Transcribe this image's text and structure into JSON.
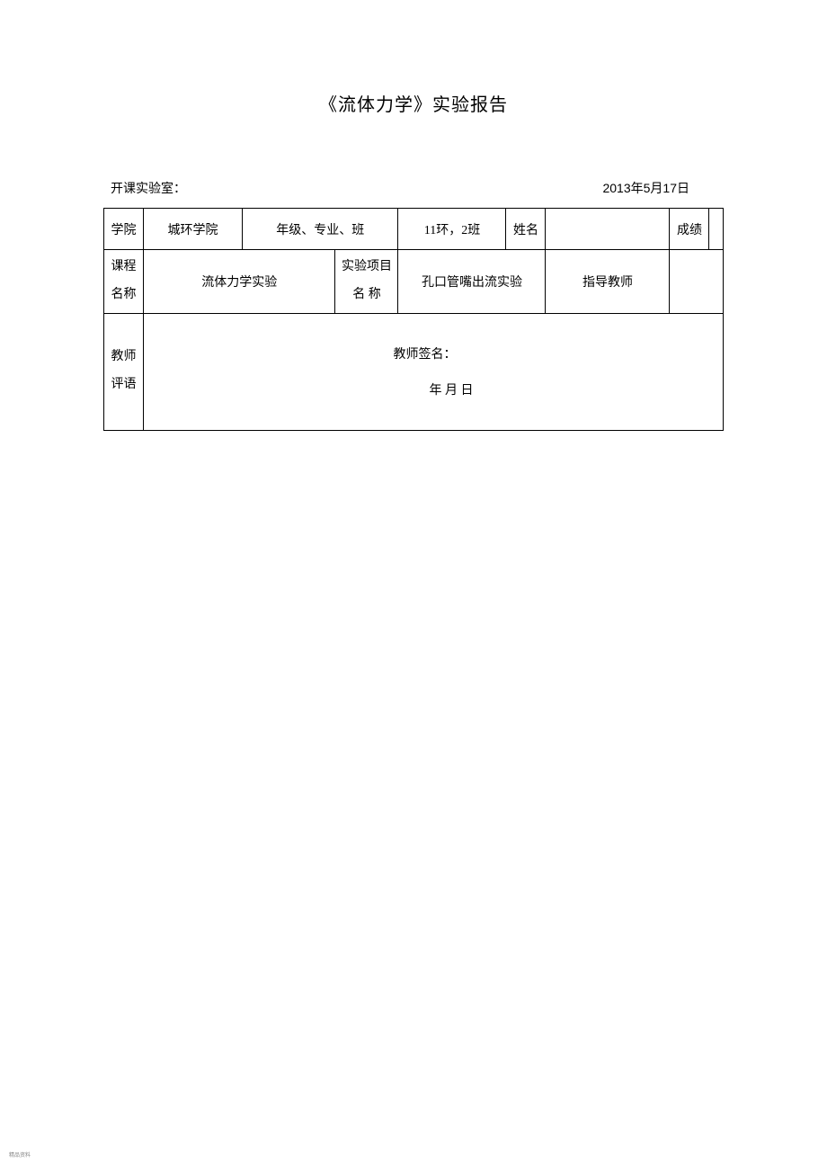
{
  "title": "《流体力学》实验报告",
  "header": {
    "labRoom": "开课实验室：",
    "date": "2013年5月17日"
  },
  "row1": {
    "collegeLabel": "学院",
    "collegeValue": "城环学院",
    "gradeLabel": "年级、专业、班",
    "gradeValue": "11环，2班",
    "nameLabel": "姓名",
    "nameValue": "",
    "scoreLabel": "成绩",
    "scoreValue": ""
  },
  "row2": {
    "courseLabel": "课程\n名称",
    "courseValue": "流体力学实验",
    "projectLabel": "实验项目\n名 称",
    "projectValue": "孔口管嘴出流实验",
    "instructorLabel": "指导教师",
    "instructorValue": ""
  },
  "row3": {
    "commentLabel": "教师\n评语",
    "signatureLabel": "教师签名：",
    "dateStub": "年  月 日"
  },
  "footer": "精品资料",
  "styling": {
    "pageWidth": 920,
    "pageHeight": 1303,
    "backgroundColor": "#ffffff",
    "borderColor": "#000000",
    "textColor": "#000000",
    "titleFontSize": 20,
    "bodyFontSize": 14,
    "footerFontSize": 6,
    "footerColor": "#888888",
    "fontFamily": "SimSun"
  }
}
